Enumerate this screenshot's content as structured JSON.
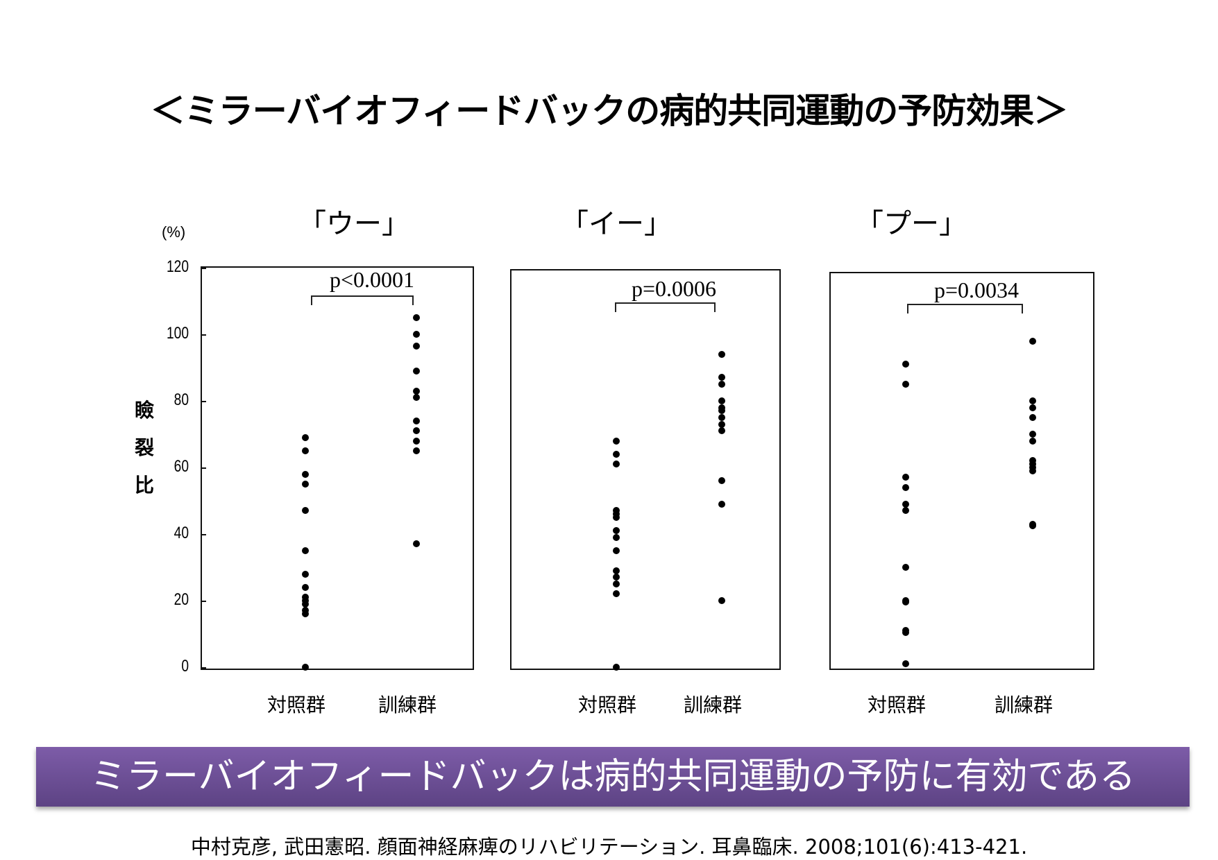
{
  "title": "＜ミラーバイオフィードバックの病的共同運動の予防効果＞",
  "y_axis": {
    "unit": "(%)",
    "label_chars": [
      "瞼",
      "裂",
      "比"
    ],
    "ticks": [
      "120",
      "100",
      "80",
      "60",
      "40",
      "20",
      "0"
    ]
  },
  "x_groups": [
    "対照群",
    "訓練群"
  ],
  "conclusion": "ミラーバイオフィードバックは病的共同運動の予防に有効である",
  "citation": "中村克彦, 武田憲昭. 顔面神経麻痺のリハビリテーション. 耳鼻臨床. 2008;101(6):413-421.",
  "colors": {
    "banner_top": "#7d5ca8",
    "banner_bottom": "#5d4384",
    "dots": "#000000"
  },
  "chart_data": [
    {
      "type": "scatter",
      "title": "「ウー」",
      "xlabel": "",
      "ylabel": "瞼裂比 (%)",
      "ylim": [
        0,
        120
      ],
      "yticks": [
        0,
        20,
        40,
        60,
        80,
        100,
        120
      ],
      "categories": [
        "対照群",
        "訓練群"
      ],
      "annotation": "p<0.0001",
      "series": [
        {
          "name": "対照群",
          "values": [
            69,
            65,
            58,
            55,
            47,
            35,
            28,
            24,
            21,
            20,
            19,
            17,
            16,
            0
          ]
        },
        {
          "name": "訓練群",
          "values": [
            105,
            100,
            96.5,
            89,
            83,
            81,
            74,
            71,
            68,
            65,
            37
          ]
        }
      ]
    },
    {
      "type": "scatter",
      "title": "「イー」",
      "xlabel": "",
      "ylabel": "瞼裂比 (%)",
      "ylim": [
        0,
        120
      ],
      "categories": [
        "対照群",
        "訓練群"
      ],
      "annotation": "p=0.0006",
      "series": [
        {
          "name": "対照群",
          "values": [
            68,
            64,
            61,
            47,
            46,
            45,
            41,
            39,
            35,
            29,
            27,
            25,
            22,
            0
          ]
        },
        {
          "name": "訓練群",
          "values": [
            94,
            87,
            85,
            80,
            78,
            77,
            75,
            73,
            71,
            56,
            49,
            20
          ]
        }
      ]
    },
    {
      "type": "scatter",
      "title": "「プー」",
      "xlabel": "",
      "ylabel": "瞼裂比 (%)",
      "ylim": [
        0,
        120
      ],
      "categories": [
        "対照群",
        "訓練群"
      ],
      "annotation": "p=0.0034",
      "series": [
        {
          "name": "対照群",
          "values": [
            91,
            85,
            57,
            54,
            49,
            47,
            30,
            20,
            19.5,
            11,
            10.5,
            1
          ]
        },
        {
          "name": "訓練群",
          "values": [
            98,
            80,
            78,
            75,
            70,
            68,
            62,
            61,
            60,
            59,
            43,
            42.5
          ]
        }
      ]
    }
  ]
}
